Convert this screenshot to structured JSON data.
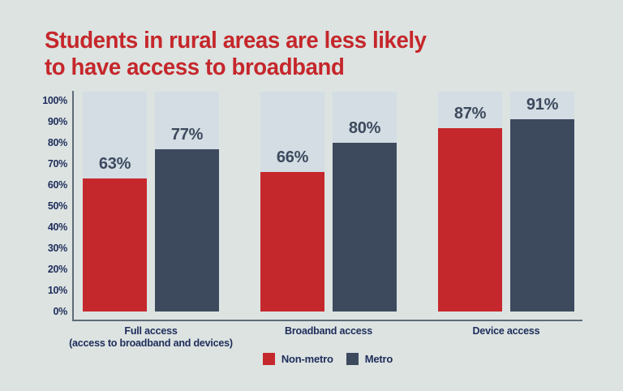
{
  "title": {
    "text": "Students in rural areas are less likely\nto have access to broadband",
    "color": "#c5272b"
  },
  "chart_data": {
    "type": "bar",
    "title": "Students in rural areas are less likely to have access to broadband",
    "categories": [
      "Full access\n(access to broadband and devices)",
      "Broadband access",
      "Device access"
    ],
    "series": [
      {
        "name": "Non-metro",
        "color": "#c5282c",
        "values": [
          63,
          66,
          87
        ]
      },
      {
        "name": "Metro",
        "color": "#3d4a5e",
        "values": [
          77,
          80,
          91
        ]
      }
    ],
    "unit": "%",
    "yticks": [
      "0%",
      "10%",
      "20%",
      "30%",
      "40%",
      "50%",
      "60%",
      "70%",
      "80%",
      "90%",
      "100%"
    ],
    "ylim": [
      0,
      100
    ],
    "grid": false,
    "legend_position": "bottom",
    "colors": {
      "background": "#dce3e1",
      "bar_track": "#d3dde3",
      "axis_line": "#5f6b78",
      "tick_label": "#1e2c5a",
      "value_label": "#3d4a5e"
    }
  }
}
